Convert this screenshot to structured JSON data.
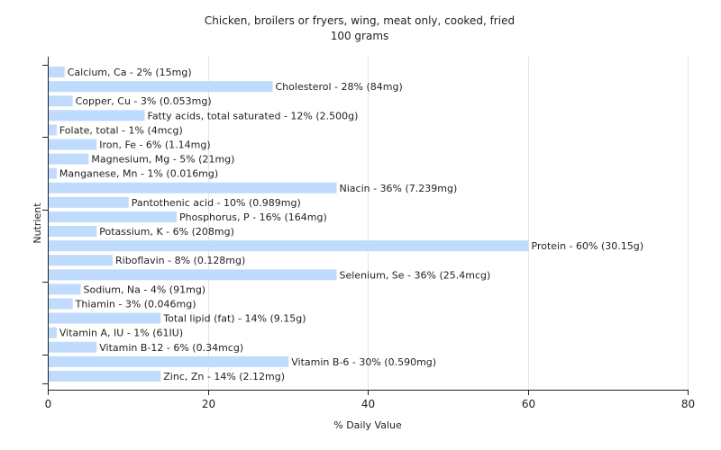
{
  "chart_data": {
    "type": "bar",
    "orientation": "horizontal",
    "title": "Chicken, broilers or fryers, wing, meat only, cooked, fried",
    "subtitle": "100 grams",
    "xlabel": "% Daily Value",
    "ylabel": "Nutrient",
    "xlim": [
      0,
      80
    ],
    "xticks": [
      0,
      20,
      40,
      60,
      80
    ],
    "grid": true,
    "bar_color": "#bfdbfd",
    "categories": [
      "Calcium, Ca",
      "Cholesterol",
      "Copper, Cu",
      "Fatty acids, total saturated",
      "Folate, total",
      "Iron, Fe",
      "Magnesium, Mg",
      "Manganese, Mn",
      "Niacin",
      "Pantothenic acid",
      "Phosphorus, P",
      "Potassium, K",
      "Protein",
      "Riboflavin",
      "Selenium, Se",
      "Sodium, Na",
      "Thiamin",
      "Total lipid (fat)",
      "Vitamin A, IU",
      "Vitamin B-12",
      "Vitamin B-6",
      "Zinc, Zn"
    ],
    "values": [
      2,
      28,
      3,
      12,
      1,
      6,
      5,
      1,
      36,
      10,
      16,
      6,
      60,
      8,
      36,
      4,
      3,
      14,
      1,
      6,
      30,
      14
    ],
    "labels": [
      "Calcium, Ca - 2% (15mg)",
      "Cholesterol - 28% (84mg)",
      "Copper, Cu - 3% (0.053mg)",
      "Fatty acids, total saturated - 12% (2.500g)",
      "Folate, total - 1% (4mcg)",
      "Iron, Fe - 6% (1.14mg)",
      "Magnesium, Mg - 5% (21mg)",
      "Manganese, Mn - 1% (0.016mg)",
      "Niacin - 36% (7.239mg)",
      "Pantothenic acid - 10% (0.989mg)",
      "Phosphorus, P - 16% (164mg)",
      "Potassium, K - 6% (208mg)",
      "Protein - 60% (30.15g)",
      "Riboflavin - 8% (0.128mg)",
      "Selenium, Se - 36% (25.4mcg)",
      "Sodium, Na - 4% (91mg)",
      "Thiamin - 3% (0.046mg)",
      "Total lipid (fat) - 14% (9.15g)",
      "Vitamin A, IU - 1% (61IU)",
      "Vitamin B-12 - 6% (0.34mcg)",
      "Vitamin B-6 - 30% (0.590mg)",
      "Zinc, Zn - 14% (2.12mg)"
    ]
  }
}
